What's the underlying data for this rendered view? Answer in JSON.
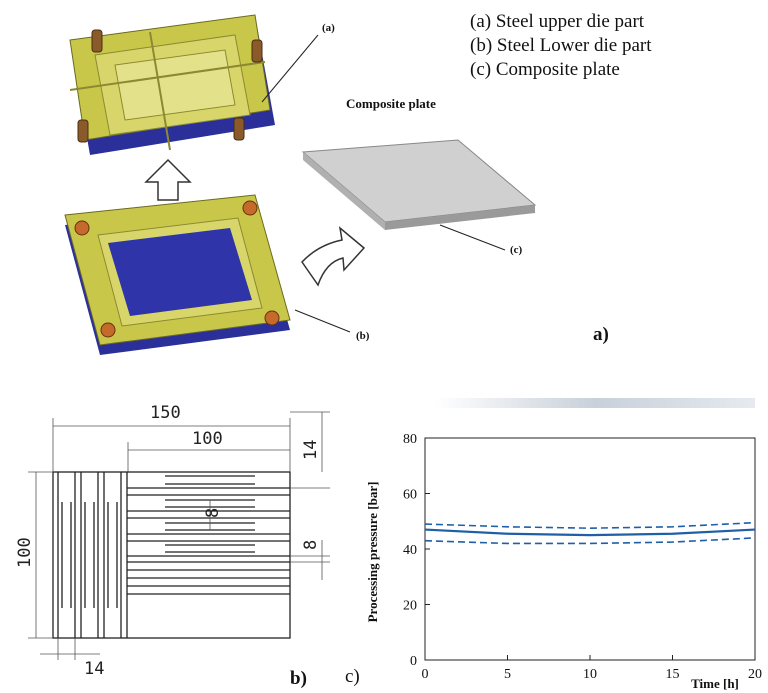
{
  "panel_a": {
    "legend": [
      "(a) Steel upper die part",
      "(b) Steel Lower die part",
      "(c) Composite plate"
    ],
    "composite_title": "Composite plate",
    "callouts": {
      "a": "(a)",
      "b": "(b)",
      "c": "(c)"
    },
    "panel_label": "a)"
  },
  "panel_b": {
    "dim_150": "150",
    "dim_100_top": "100",
    "dim_14_right": "14",
    "dim_8_inner": "8",
    "dim_8_right": "8",
    "dim_100_left": "100",
    "dim_14_bottom": "14",
    "panel_label": "b)"
  },
  "panel_c": {
    "panel_label": "c)",
    "chart_data": {
      "type": "line",
      "xlabel": "Time [h]",
      "ylabel": "Processing pressure [bar]",
      "xlim": [
        0,
        20
      ],
      "ylim": [
        0,
        80
      ],
      "xticks": [
        0,
        5,
        10,
        15,
        20
      ],
      "yticks": [
        0,
        20,
        40,
        60,
        80
      ],
      "series": [
        {
          "style": "dashed",
          "x": [
            0,
            5,
            10,
            15,
            20
          ],
          "y": [
            49,
            48,
            47.5,
            48,
            49.5
          ]
        },
        {
          "style": "solid",
          "x": [
            0,
            5,
            10,
            15,
            20
          ],
          "y": [
            47,
            45.5,
            45,
            45.5,
            47
          ]
        },
        {
          "style": "dashed",
          "x": [
            0,
            5,
            10,
            15,
            20
          ],
          "y": [
            43,
            42,
            42,
            42.5,
            44
          ]
        }
      ],
      "line_color": "#1f5fa8"
    }
  }
}
